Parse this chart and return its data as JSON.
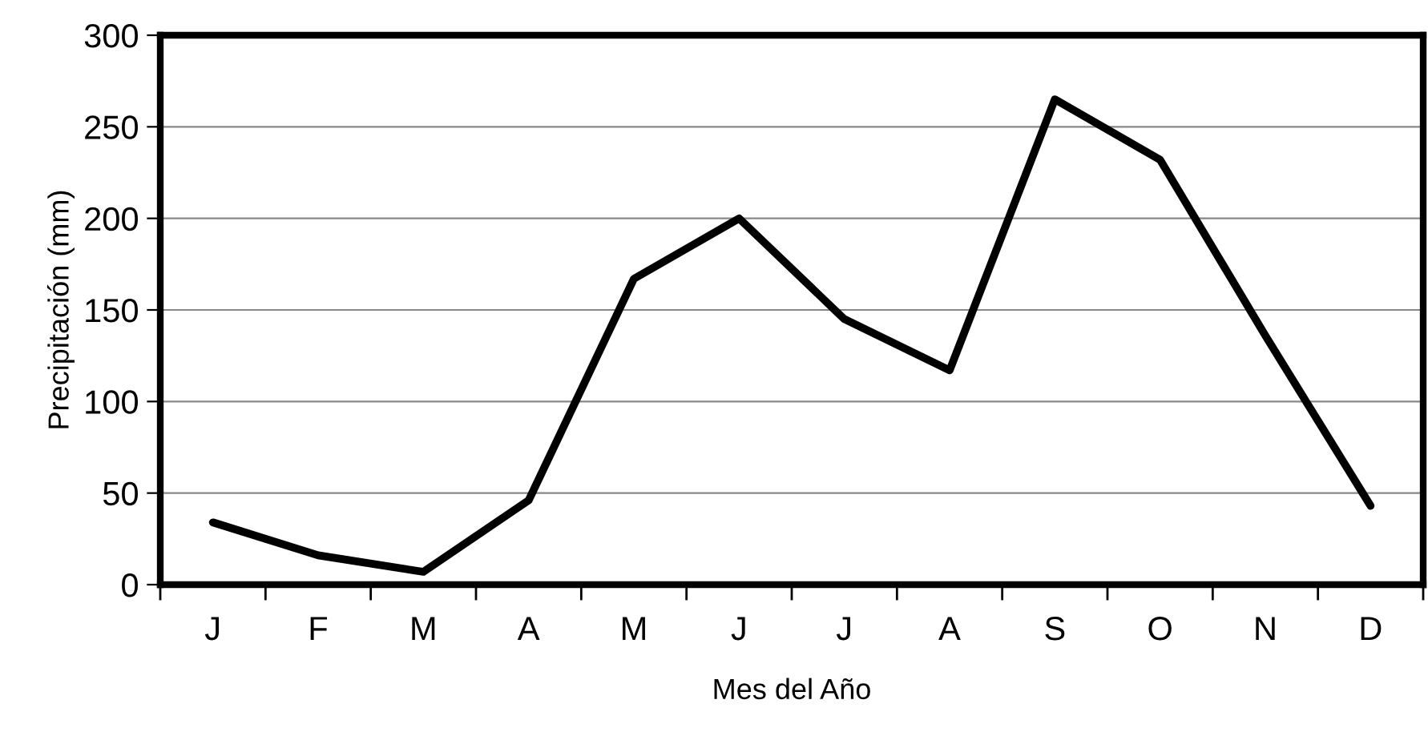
{
  "chart_data": {
    "type": "line",
    "xlabel": "Mes del Año",
    "ylabel": "Precipitación (mm)",
    "categories": [
      "J",
      "F",
      "M",
      "A",
      "M",
      "J",
      "J",
      "A",
      "S",
      "O",
      "N",
      "D"
    ],
    "series": [
      {
        "color": "#000000",
        "values": [
          34,
          16,
          7,
          46,
          167,
          200,
          145,
          117,
          265,
          232,
          136,
          43
        ]
      }
    ],
    "ylim": [
      0,
      300
    ],
    "yticks": [
      0,
      50,
      100,
      150,
      200,
      250,
      300
    ],
    "grid": "y",
    "legend": false,
    "marker": "none",
    "line_style": "solid"
  }
}
